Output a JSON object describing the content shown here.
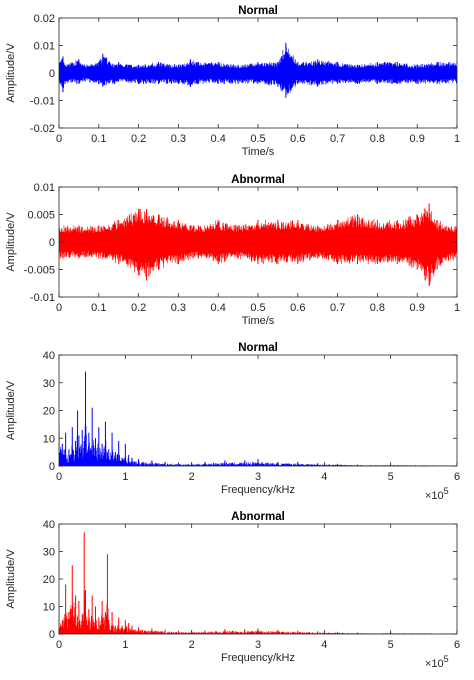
{
  "chart_data": [
    {
      "type": "line",
      "title": "Normal",
      "xlabel": "Time/s",
      "ylabel": "Amplitude/V",
      "xlim": [
        0,
        1
      ],
      "ylim": [
        -0.02,
        0.02
      ],
      "xticks": [
        0,
        0.1,
        0.2,
        0.3,
        0.4,
        0.5,
        0.6,
        0.7,
        0.8,
        0.9,
        1
      ],
      "xtick_labels": [
        "0",
        "0.1",
        "0.2",
        "0.3",
        "0.4",
        "0.5",
        "0.6",
        "0.7",
        "0.8",
        "0.9",
        "1"
      ],
      "yticks": [
        -0.02,
        -0.01,
        0,
        0.01,
        0.02
      ],
      "ytick_labels": [
        "-0.02",
        "-0.01",
        "0",
        "0.01",
        "0.02"
      ],
      "color": "#0000ff",
      "series": [
        {
          "x": [
            0,
            0.01,
            0.015,
            0.05,
            0.06,
            0.1,
            0.11,
            0.14,
            0.15,
            0.2,
            0.25,
            0.3,
            0.33,
            0.35,
            0.4,
            0.45,
            0.5,
            0.55,
            0.57,
            0.6,
            0.65,
            0.7,
            0.75,
            0.8,
            0.85,
            0.9,
            0.95,
            1
          ],
          "y_upper": [
            0.004,
            0.006,
            0.003,
            0.005,
            0.003,
            0.004,
            0.007,
            0.003,
            0.004,
            0.003,
            0.004,
            0.003,
            0.005,
            0.004,
            0.004,
            0.003,
            0.004,
            0.004,
            0.011,
            0.004,
            0.005,
            0.004,
            0.003,
            0.004,
            0.004,
            0.003,
            0.004,
            0.004
          ],
          "y_lower": [
            -0.004,
            -0.007,
            -0.004,
            -0.004,
            -0.003,
            -0.004,
            -0.005,
            -0.004,
            -0.003,
            -0.004,
            -0.004,
            -0.004,
            -0.005,
            -0.004,
            -0.004,
            -0.004,
            -0.004,
            -0.005,
            -0.009,
            -0.004,
            -0.005,
            -0.004,
            -0.004,
            -0.004,
            -0.004,
            -0.004,
            -0.004,
            -0.004
          ]
        }
      ]
    },
    {
      "type": "line",
      "title": "Abnormal",
      "xlabel": "Time/s",
      "ylabel": "Amplitude/V",
      "xlim": [
        0,
        1
      ],
      "ylim": [
        -0.01,
        0.01
      ],
      "xticks": [
        0,
        0.1,
        0.2,
        0.3,
        0.4,
        0.5,
        0.6,
        0.7,
        0.8,
        0.9,
        1
      ],
      "xtick_labels": [
        "0",
        "0.1",
        "0.2",
        "0.3",
        "0.4",
        "0.5",
        "0.6",
        "0.7",
        "0.8",
        "0.9",
        "1"
      ],
      "yticks": [
        -0.01,
        -0.005,
        0,
        0.005,
        0.01
      ],
      "ytick_labels": [
        "-0.01",
        "-0.005",
        "0",
        "0.005",
        "0.01"
      ],
      "color": "#ff0000",
      "series": [
        {
          "x": [
            0,
            0.05,
            0.1,
            0.15,
            0.2,
            0.22,
            0.25,
            0.3,
            0.35,
            0.4,
            0.45,
            0.5,
            0.55,
            0.6,
            0.65,
            0.7,
            0.75,
            0.8,
            0.85,
            0.9,
            0.93,
            0.95,
            1
          ],
          "y_upper": [
            0.003,
            0.003,
            0.003,
            0.004,
            0.006,
            0.006,
            0.005,
            0.004,
            0.003,
            0.004,
            0.003,
            0.004,
            0.004,
            0.004,
            0.003,
            0.004,
            0.005,
            0.004,
            0.004,
            0.005,
            0.007,
            0.004,
            0.003
          ],
          "y_lower": [
            -0.003,
            -0.003,
            -0.003,
            -0.004,
            -0.006,
            -0.007,
            -0.005,
            -0.004,
            -0.003,
            -0.004,
            -0.003,
            -0.004,
            -0.004,
            -0.004,
            -0.003,
            -0.004,
            -0.004,
            -0.004,
            -0.004,
            -0.005,
            -0.008,
            -0.005,
            -0.003
          ]
        }
      ]
    },
    {
      "type": "line",
      "title": "Normal",
      "xlabel": "Frequency/kHz",
      "ylabel": "Amplitude/V",
      "xlim": [
        0,
        6
      ],
      "ylim": [
        0,
        40
      ],
      "xticks": [
        0,
        1,
        2,
        3,
        4,
        5,
        6
      ],
      "xtick_labels": [
        "0",
        "1",
        "2",
        "3",
        "4",
        "5",
        "6"
      ],
      "yticks": [
        0,
        10,
        20,
        30,
        40
      ],
      "ytick_labels": [
        "0",
        "10",
        "20",
        "30",
        "40"
      ],
      "x_multiplier_base": "×10",
      "x_multiplier_exp": "5",
      "color": "#0000ff",
      "series": [
        {
          "x": [
            0,
            0.05,
            0.1,
            0.15,
            0.2,
            0.25,
            0.28,
            0.3,
            0.35,
            0.38,
            0.4,
            0.45,
            0.5,
            0.55,
            0.6,
            0.65,
            0.7,
            0.75,
            0.8,
            0.85,
            0.9,
            0.95,
            1.0,
            1.05,
            1.1,
            1.2,
            1.4,
            1.6,
            1.8,
            2.0,
            2.2,
            2.5,
            2.8,
            3.0,
            3.3,
            3.6,
            3.9,
            4.2,
            4.5,
            5.0,
            6.0
          ],
          "y": [
            15,
            8,
            12,
            6,
            14,
            9,
            20,
            11,
            13,
            9,
            34,
            12,
            21,
            10,
            14,
            8,
            16,
            6,
            12,
            5,
            9,
            3,
            8,
            4,
            3,
            2.5,
            2,
            1.5,
            1.2,
            1,
            1.5,
            2,
            2,
            2.5,
            1.5,
            1.5,
            1,
            0.8,
            0.5,
            0.5,
            0.3
          ]
        }
      ]
    },
    {
      "type": "line",
      "title": "Abnormal",
      "xlabel": "Frequency/kHz",
      "ylabel": "Amplitude/V",
      "xlim": [
        0,
        6
      ],
      "ylim": [
        0,
        40
      ],
      "xticks": [
        0,
        1,
        2,
        3,
        4,
        5,
        6
      ],
      "xtick_labels": [
        "0",
        "1",
        "2",
        "3",
        "4",
        "5",
        "6"
      ],
      "yticks": [
        0,
        10,
        20,
        30,
        40
      ],
      "ytick_labels": [
        "0",
        "10",
        "20",
        "30",
        "40"
      ],
      "x_multiplier_base": "×10",
      "x_multiplier_exp": "5",
      "color": "#ff0000",
      "series": [
        {
          "x": [
            0,
            0.05,
            0.1,
            0.15,
            0.2,
            0.25,
            0.3,
            0.35,
            0.38,
            0.4,
            0.45,
            0.5,
            0.55,
            0.6,
            0.65,
            0.7,
            0.73,
            0.75,
            0.8,
            0.85,
            0.9,
            0.95,
            1.0,
            1.05,
            1.1,
            1.2,
            1.4,
            1.6,
            1.8,
            2.0,
            2.2,
            2.5,
            2.8,
            3.0,
            3.3,
            3.6,
            3.9,
            4.2,
            4.5,
            5.0,
            6.0
          ],
          "y": [
            10,
            5,
            18,
            8,
            25,
            14,
            12,
            7,
            37,
            16,
            9,
            14,
            10,
            6,
            12,
            8,
            29,
            5,
            8,
            3,
            6,
            3,
            5,
            4,
            3,
            2.5,
            2,
            1.5,
            1.2,
            1,
            1.3,
            1.8,
            1.8,
            2,
            1.5,
            1.2,
            1,
            0.8,
            0.5,
            0.5,
            0.3
          ]
        }
      ]
    }
  ]
}
